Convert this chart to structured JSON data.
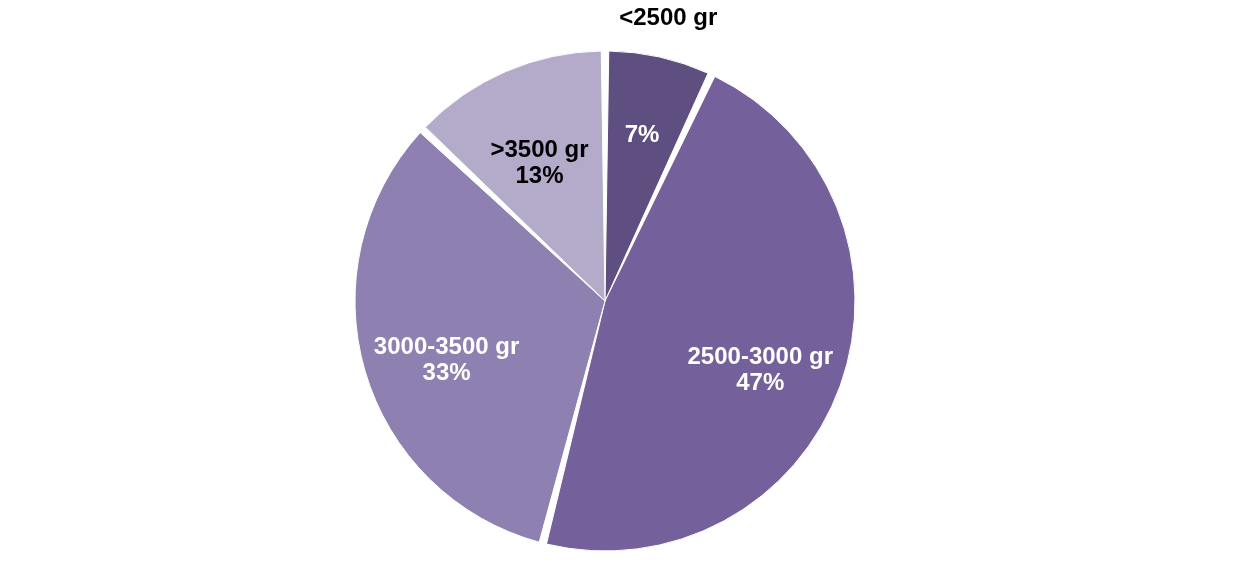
{
  "chart_data": {
    "type": "pie",
    "categories": [
      "<2500 gr",
      "2500-3000 gr",
      "3000-3500 gr",
      ">3500 gr"
    ],
    "values": [
      7,
      47,
      33,
      13
    ],
    "value_labels": [
      "7%",
      "47%",
      "33%",
      "13%"
    ],
    "colors": [
      "#5e4f80",
      "#74609a",
      "#8e80b0",
      "#b4aaca"
    ],
    "legend": false
  }
}
